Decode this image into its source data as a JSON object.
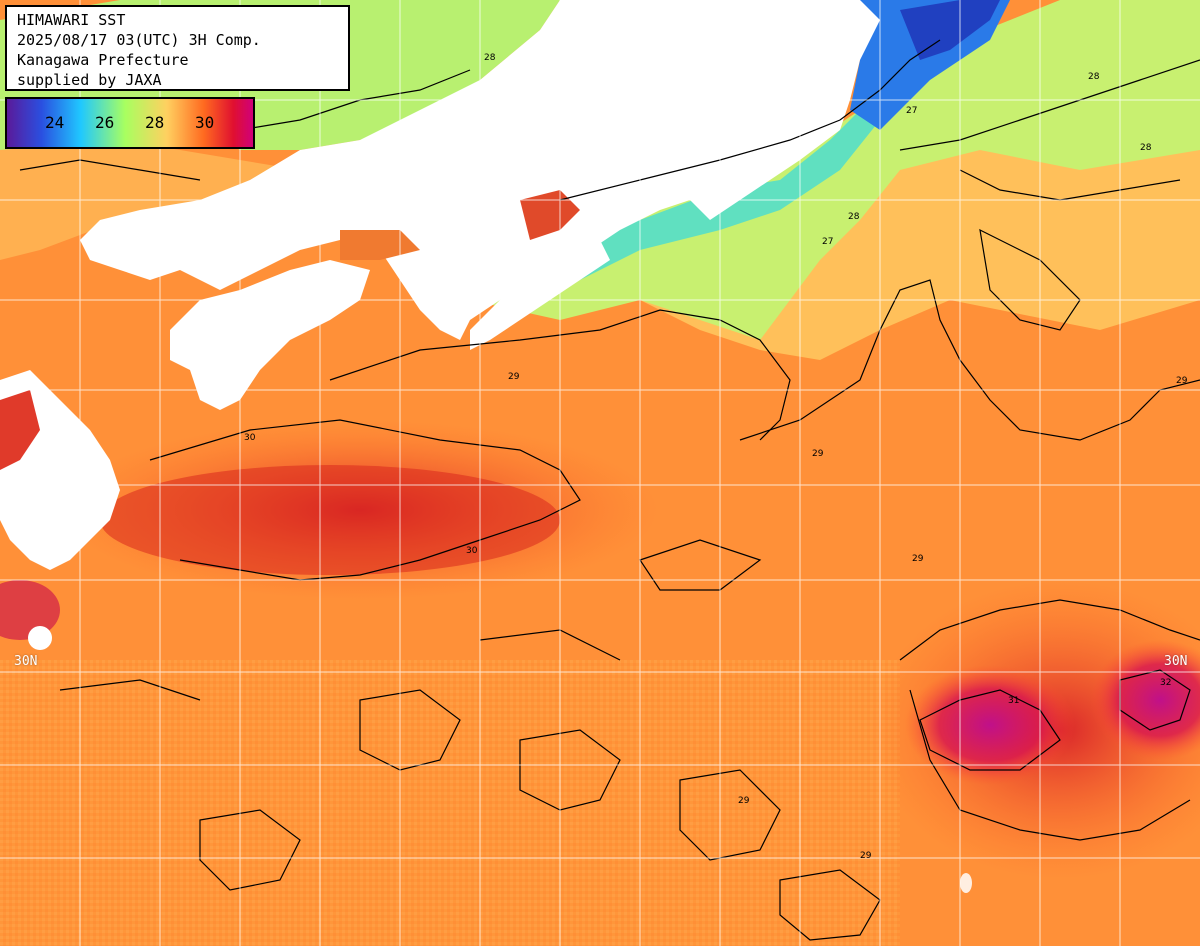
{
  "header": {
    "line1": "HIMAWARI SST",
    "line2": "2025/08/17 03(UTC) 3H Comp.",
    "line3": "Kanagawa Prefecture",
    "line4": "supplied by JAXA"
  },
  "legend": {
    "labels": [
      "24",
      "26",
      "28",
      "30"
    ],
    "gradient_colors": [
      "#5a1a9a",
      "#2a4fe0",
      "#20c8ff",
      "#a8ff60",
      "#ffd060",
      "#ff6a20",
      "#e01030",
      "#d0007a"
    ]
  },
  "latitude_labels": {
    "left": "30N",
    "right": "30N"
  },
  "contour_labels": [
    "28",
    "27",
    "29",
    "30",
    "31",
    "32"
  ],
  "colors": {
    "land": "#ffffff",
    "grid": "#ffffff",
    "contour": "#000000",
    "cold": "#1a6fe0",
    "cool": "#40e0d0",
    "mild": "#b8f070",
    "warm": "#ff9a3a",
    "hot": "#e83418",
    "hottest": "#c8108a"
  }
}
